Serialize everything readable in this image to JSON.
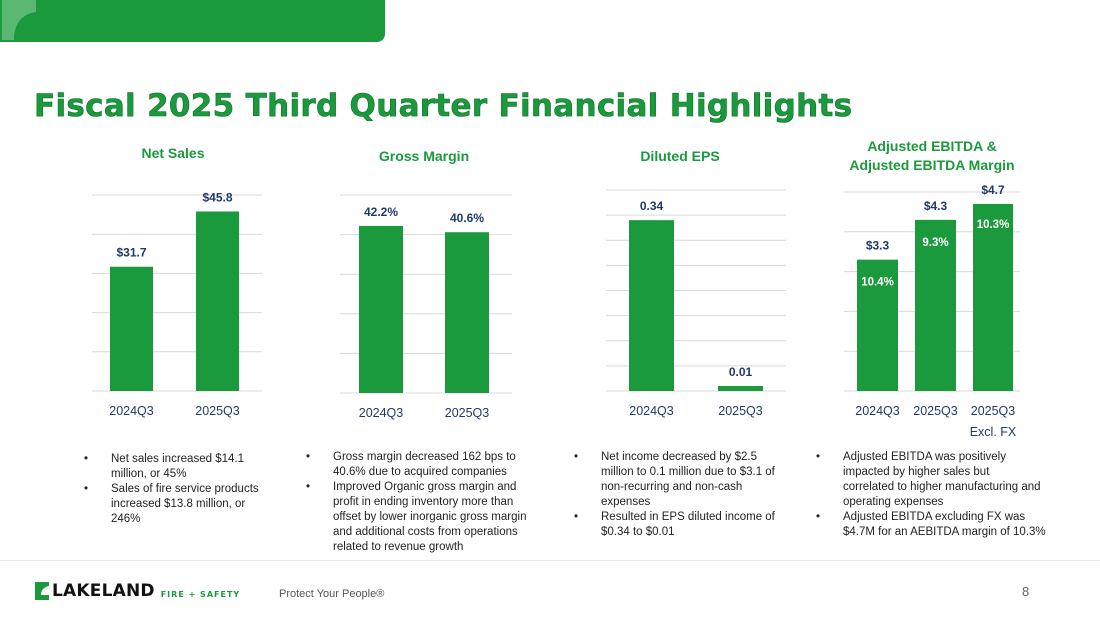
{
  "slide": {
    "title": "Fiscal 2025 Third Quarter Financial Highlights",
    "page_number": "8",
    "tagline": "Protect Your People®",
    "logo": {
      "word": "LAKELAND",
      "sub": "FIRE + SAFETY"
    },
    "colors": {
      "brand_green": "#1a9a3c",
      "axis_label": "#1f3a6a",
      "grid": "#d9d9d9"
    }
  },
  "chart_data": [
    {
      "type": "bar",
      "title": "Net Sales",
      "categories": [
        "2024Q3",
        "2025Q3"
      ],
      "values": [
        31.7,
        45.8
      ],
      "value_labels": [
        "$31.7",
        "$45.8"
      ],
      "ylim": [
        0,
        50
      ],
      "grid": true
    },
    {
      "type": "bar",
      "title": "Gross Margin",
      "categories": [
        "2024Q3",
        "2025Q3"
      ],
      "values": [
        42.2,
        40.6
      ],
      "value_labels": [
        "42.2%",
        "40.6%"
      ],
      "ylim": [
        0,
        50
      ],
      "grid": true
    },
    {
      "type": "bar",
      "title": "Diluted EPS",
      "categories": [
        "2024Q3",
        "2025Q3"
      ],
      "values": [
        0.34,
        0.01
      ],
      "value_labels": [
        "0.34",
        "0.01"
      ],
      "ylim": [
        0,
        0.4
      ],
      "grid": true
    },
    {
      "type": "bar",
      "title": "Adjusted EBITDA & Adjusted EBITDA Margin",
      "title_lines": [
        "Adjusted EBITDA &",
        "Adjusted EBITDA Margin"
      ],
      "categories": [
        "2024Q3",
        "2025Q3",
        "2025Q3"
      ],
      "category_sublabels": [
        "",
        "",
        "Excl. FX"
      ],
      "values": [
        3.3,
        4.3,
        4.7
      ],
      "value_labels": [
        "$3.3",
        "$4.3",
        "$4.7"
      ],
      "inner_labels": [
        "10.4%",
        "9.3%",
        "10.3%"
      ],
      "ylim": [
        0,
        5
      ],
      "grid": true
    }
  ],
  "bullets": [
    [
      "Net sales increased $14.1\nmillion, or 45%",
      "Sales of fire service products\nincreased $13.8 million, or\n246%"
    ],
    [
      "Gross margin decreased 162 bps to\n40.6% due to acquired companies",
      "Improved Organic gross margin and\nprofit in ending inventory more than\noffset by lower inorganic gross margin\nand additional costs from operations\nrelated to revenue growth"
    ],
    [
      "Net income decreased by $2.5\nmillion to 0.1 million due to $3.1 of\nnon-recurring and non-cash\nexpenses",
      "Resulted in EPS diluted income of\n$0.34 to $0.01"
    ],
    [
      "Adjusted EBITDA was positively\nimpacted by higher sales but\ncorrelated to higher manufacturing and\noperating expenses",
      "Adjusted EBITDA excluding FX was\n$4.7M for an AEBITDA margin of 10.3%"
    ]
  ]
}
